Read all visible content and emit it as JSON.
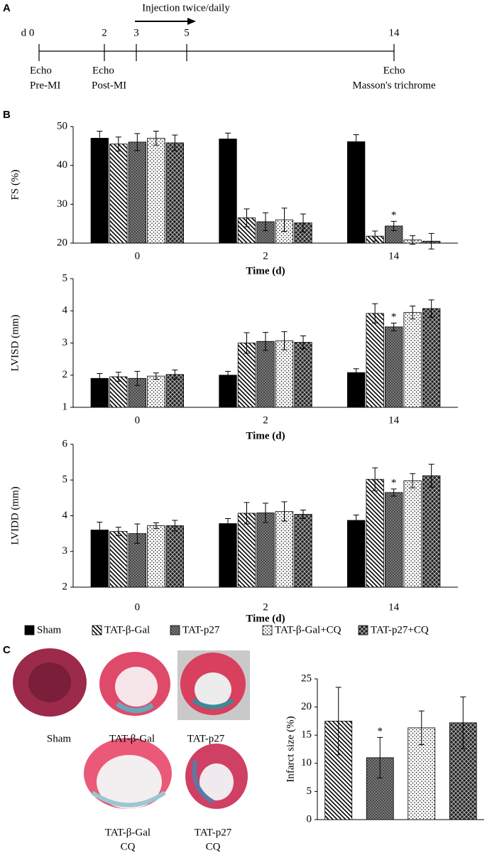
{
  "panels": [
    "A",
    "B",
    "C"
  ],
  "timeline": {
    "arrow_label": "Injection twice/daily",
    "ticks": [
      "d 0",
      "2",
      "3",
      "5",
      "14"
    ],
    "events": [
      {
        "lines": [
          "Echo",
          "Pre-MI"
        ]
      },
      {
        "lines": [
          "Echo",
          "Post-MI"
        ]
      },
      {
        "lines": [
          "Echo",
          "Masson's trichrome"
        ]
      }
    ]
  },
  "photos": [
    {
      "lines": [
        "Sham"
      ]
    },
    {
      "lines": [
        "TAT-β-Gal"
      ]
    },
    {
      "lines": [
        "TAT-p27"
      ]
    },
    {
      "lines": [
        "TAT-β-Gal",
        "CQ"
      ]
    },
    {
      "lines": [
        "TAT-p27",
        "CQ"
      ]
    }
  ],
  "chart_data": [
    {
      "type": "bar",
      "ylabel": "FS (%)",
      "xlabel": "Time (d)",
      "categories": [
        "0",
        "2",
        "14"
      ],
      "ylim": [
        20,
        50
      ],
      "yticks": [
        20,
        30,
        40,
        50
      ],
      "grid": false,
      "series": [
        {
          "name": "Sham",
          "color": "#000000",
          "pattern": "solid",
          "values": [
            47,
            46.8,
            46.1
          ],
          "errors": [
            1.8,
            1.5,
            1.8
          ]
        },
        {
          "name": "TAT-β-Gal",
          "color": "#000000",
          "pattern": "diagonal",
          "values": [
            45.5,
            26.5,
            21.8
          ],
          "errors": [
            1.8,
            2.3,
            1.3
          ]
        },
        {
          "name": "TAT-p27",
          "color": "#000000",
          "pattern": "crosshatch",
          "values": [
            46,
            25.5,
            24.4
          ],
          "errors": [
            2.2,
            2.3,
            1.2
          ],
          "annotations": [
            null,
            null,
            "*"
          ]
        },
        {
          "name": "TAT-β-Gal+CQ",
          "color": "#000000",
          "pattern": "dots",
          "values": [
            47,
            26,
            20.8
          ],
          "errors": [
            1.8,
            3,
            1.1
          ]
        },
        {
          "name": "TAT-p27+CQ",
          "color": "#000000",
          "pattern": "diamond",
          "values": [
            45.8,
            25.2,
            20.5
          ],
          "errors": [
            2,
            2.3,
            2
          ]
        }
      ]
    },
    {
      "type": "bar",
      "ylabel": "LVISD (mm)",
      "xlabel": "Time (d)",
      "categories": [
        "0",
        "2",
        "14"
      ],
      "ylim": [
        1,
        5
      ],
      "yticks": [
        1,
        2,
        3,
        4,
        5
      ],
      "grid": false,
      "series": [
        {
          "color": "#000000",
          "pattern": "solid",
          "values": [
            1.9,
            2.0,
            2.08
          ],
          "errors": [
            0.15,
            0.12,
            0.12
          ]
        },
        {
          "color": "#000000",
          "pattern": "diagonal",
          "values": [
            1.95,
            3.0,
            3.92
          ],
          "errors": [
            0.14,
            0.32,
            0.3
          ]
        },
        {
          "color": "#000000",
          "pattern": "crosshatch",
          "values": [
            1.9,
            3.05,
            3.5
          ],
          "errors": [
            0.22,
            0.28,
            0.12
          ],
          "annotations": [
            null,
            null,
            "*"
          ]
        },
        {
          "color": "#000000",
          "pattern": "dots",
          "values": [
            1.97,
            3.07,
            3.95
          ],
          "errors": [
            0.1,
            0.28,
            0.2
          ]
        },
        {
          "color": "#000000",
          "pattern": "diamond",
          "values": [
            2.02,
            3.02,
            4.07
          ],
          "errors": [
            0.14,
            0.2,
            0.27
          ]
        }
      ]
    },
    {
      "type": "bar",
      "ylabel": "LVIDD (mm)",
      "xlabel": "Time (d)",
      "categories": [
        "0",
        "2",
        "14"
      ],
      "ylim": [
        2,
        6
      ],
      "yticks": [
        2,
        3,
        4,
        5,
        6
      ],
      "grid": false,
      "series": [
        {
          "color": "#000000",
          "pattern": "solid",
          "values": [
            3.6,
            3.78,
            3.87
          ],
          "errors": [
            0.22,
            0.14,
            0.15
          ]
        },
        {
          "color": "#000000",
          "pattern": "diagonal",
          "values": [
            3.56,
            4.07,
            5.02
          ],
          "errors": [
            0.12,
            0.3,
            0.32
          ]
        },
        {
          "color": "#000000",
          "pattern": "crosshatch",
          "values": [
            3.5,
            4.08,
            4.65
          ],
          "errors": [
            0.27,
            0.27,
            0.1
          ],
          "annotations": [
            null,
            null,
            "*"
          ]
        },
        {
          "color": "#000000",
          "pattern": "dots",
          "values": [
            3.72,
            4.12,
            4.98
          ],
          "errors": [
            0.08,
            0.27,
            0.2
          ]
        },
        {
          "color": "#000000",
          "pattern": "diamond",
          "values": [
            3.72,
            4.04,
            5.12
          ],
          "errors": [
            0.15,
            0.12,
            0.32
          ]
        }
      ]
    },
    {
      "type": "bar",
      "ylabel": "Infarct size (%)",
      "categories": [
        null
      ],
      "ylim": [
        0,
        25
      ],
      "yticks": [
        0,
        5,
        10,
        15,
        20,
        25
      ],
      "grid": false,
      "series": [
        {
          "color": "#000000",
          "pattern": "diagonal",
          "values": [
            17.5
          ],
          "errors": [
            6
          ]
        },
        {
          "color": "#000000",
          "pattern": "crosshatch",
          "values": [
            11
          ],
          "errors": [
            3.6
          ],
          "annotations": [
            "*"
          ]
        },
        {
          "color": "#000000",
          "pattern": "dots",
          "values": [
            16.3
          ],
          "errors": [
            3
          ]
        },
        {
          "color": "#000000",
          "pattern": "diamond",
          "values": [
            17.2
          ],
          "errors": [
            4.6
          ]
        }
      ]
    }
  ]
}
